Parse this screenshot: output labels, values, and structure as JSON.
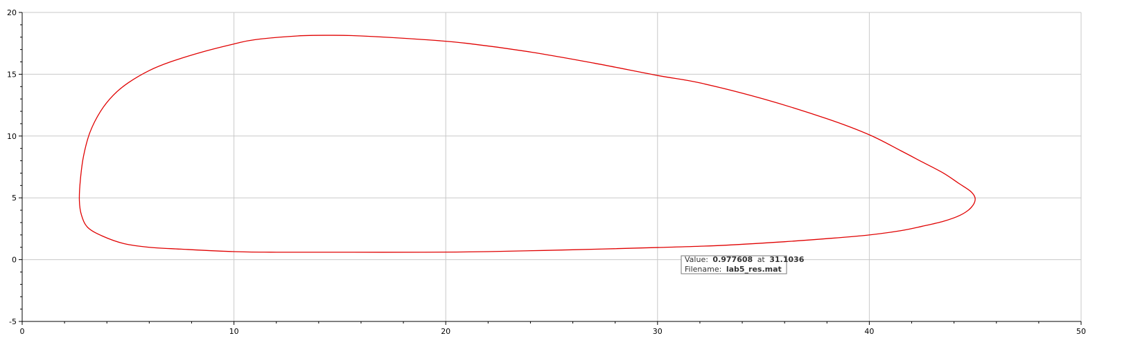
{
  "chart_data": {
    "type": "line",
    "title": "",
    "xlabel": "",
    "ylabel": "",
    "xlim": [
      0,
      50
    ],
    "ylim": [
      -5,
      20
    ],
    "xticks": [
      0,
      10,
      20,
      30,
      40,
      50
    ],
    "yticks": [
      -5,
      0,
      5,
      10,
      15,
      20
    ],
    "x_tick_labels": [
      "0",
      "10",
      "20",
      "30",
      "40",
      "50"
    ],
    "y_tick_labels": [
      "-5",
      "0",
      "5",
      "10",
      "15",
      "20"
    ],
    "grid": true,
    "line_color": "#e00000",
    "series": [
      {
        "points": [
          [
            2.7,
            4.8
          ],
          [
            2.8,
            3.6
          ],
          [
            3.1,
            2.6
          ],
          [
            3.8,
            1.9
          ],
          [
            4.8,
            1.3
          ],
          [
            6.0,
            1.0
          ],
          [
            7.5,
            0.85
          ],
          [
            10.0,
            0.65
          ],
          [
            12.0,
            0.6
          ],
          [
            15.0,
            0.6
          ],
          [
            19.0,
            0.6
          ],
          [
            22.0,
            0.65
          ],
          [
            26.0,
            0.8
          ],
          [
            30.0,
            0.98
          ],
          [
            33.0,
            1.15
          ],
          [
            36.0,
            1.45
          ],
          [
            38.0,
            1.7
          ],
          [
            40.0,
            2.0
          ],
          [
            41.5,
            2.35
          ],
          [
            42.5,
            2.7
          ],
          [
            43.5,
            3.1
          ],
          [
            44.3,
            3.6
          ],
          [
            44.8,
            4.2
          ],
          [
            45.0,
            4.9
          ],
          [
            44.8,
            5.5
          ],
          [
            44.2,
            6.2
          ],
          [
            43.5,
            7.0
          ],
          [
            42.5,
            7.9
          ],
          [
            41.5,
            8.8
          ],
          [
            40.0,
            10.1
          ],
          [
            38.0,
            11.4
          ],
          [
            35.0,
            13.0
          ],
          [
            32.0,
            14.3
          ],
          [
            30.0,
            14.9
          ],
          [
            27.0,
            15.9
          ],
          [
            24.0,
            16.8
          ],
          [
            21.0,
            17.5
          ],
          [
            19.0,
            17.8
          ],
          [
            16.0,
            18.1
          ],
          [
            14.5,
            18.15
          ],
          [
            13.0,
            18.1
          ],
          [
            11.0,
            17.8
          ],
          [
            10.0,
            17.45
          ],
          [
            8.5,
            16.8
          ],
          [
            7.0,
            16.0
          ],
          [
            6.0,
            15.3
          ],
          [
            5.0,
            14.3
          ],
          [
            4.3,
            13.3
          ],
          [
            3.7,
            12.0
          ],
          [
            3.2,
            10.3
          ],
          [
            2.9,
            8.4
          ],
          [
            2.75,
            6.5
          ],
          [
            2.7,
            4.8
          ]
        ]
      }
    ]
  },
  "tooltip": {
    "value_label": "Value:",
    "value": "0.977608",
    "at_label": "at",
    "at_value": "31.1036",
    "filename_label": "Filename:",
    "filename": "lab5_res.mat"
  }
}
